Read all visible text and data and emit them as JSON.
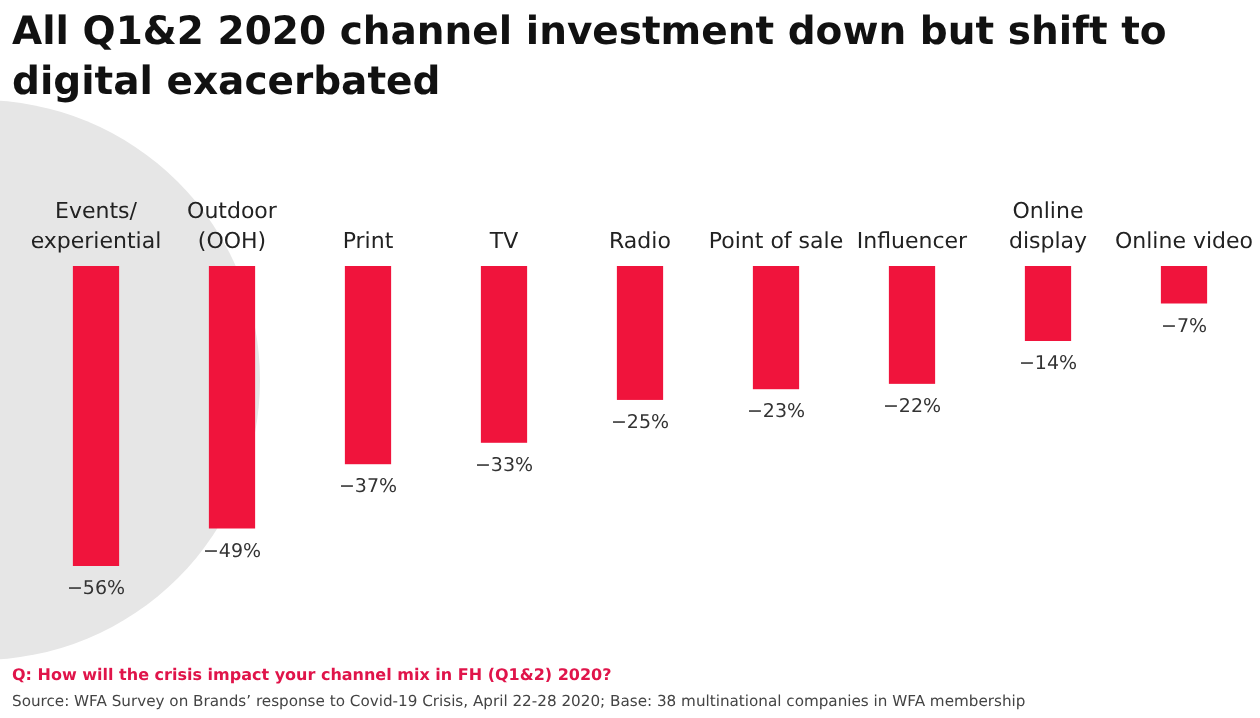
{
  "chart_data": {
    "type": "bar",
    "title": "All Q1&2 2020 channel investment down but shift to digital exacerbated",
    "categories": [
      "Events/\nexperiential",
      "Outdoor\n(OOH)",
      "Print",
      "TV",
      "Radio",
      "Point of sale",
      "Influencer",
      "Online\ndisplay",
      "Online video"
    ],
    "values": [
      -56,
      -49,
      -37,
      -33,
      -25,
      -23,
      -22,
      -14,
      -7
    ],
    "value_labels": [
      "−56%",
      "−49%",
      "−37%",
      "−33%",
      "−25%",
      "−23%",
      "−22%",
      "−14%",
      "−7%"
    ],
    "color": "#f0143c",
    "annotations": [
      "Q: How will the crisis impact your channel mix in FH (Q1&2) 2020?",
      "Source: WFA Survey on Brands’ response to Covid-19 Crisis, April 22-28 2020; Base: 38 multinational companies in WFA membership"
    ]
  }
}
